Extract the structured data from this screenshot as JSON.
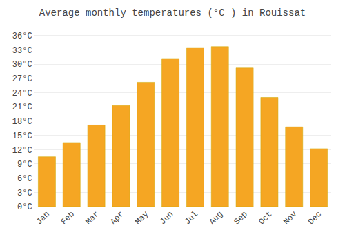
{
  "chart_data": {
    "type": "bar",
    "title": "Average monthly temperatures (°C ) in Rouissat",
    "categories": [
      "Jan",
      "Feb",
      "Mar",
      "Apr",
      "May",
      "Jun",
      "Jul",
      "Aug",
      "Sep",
      "Oct",
      "Nov",
      "Dec"
    ],
    "values": [
      10.5,
      13.5,
      17.2,
      21.3,
      26.2,
      31.2,
      33.5,
      33.7,
      29.2,
      23.0,
      16.8,
      12.2
    ],
    "color": "#F5A623",
    "ylim": [
      0,
      37
    ],
    "yticks": [
      {
        "value": 0,
        "label": "0°C"
      },
      {
        "value": 3,
        "label": "3°C"
      },
      {
        "value": 6,
        "label": "6°C"
      },
      {
        "value": 9,
        "label": "9°C"
      },
      {
        "value": 12,
        "label": "12°C"
      },
      {
        "value": 15,
        "label": "15°C"
      },
      {
        "value": 18,
        "label": "18°C"
      },
      {
        "value": 21,
        "label": "21°C"
      },
      {
        "value": 24,
        "label": "24°C"
      },
      {
        "value": 27,
        "label": "27°C"
      },
      {
        "value": 30,
        "label": "30°C"
      },
      {
        "value": 33,
        "label": "33°C"
      },
      {
        "value": 36,
        "label": "36°C"
      }
    ],
    "grid": true
  }
}
